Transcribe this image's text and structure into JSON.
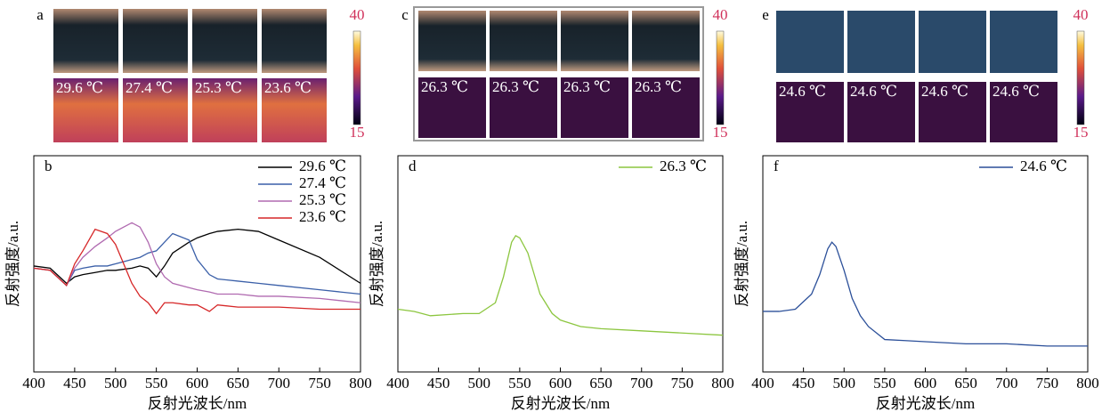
{
  "image_panels": [
    {
      "letter": "a",
      "thermal_labels": [
        "29.6 ℃",
        "27.4 ℃",
        "25.3 ℃",
        "23.6 ℃"
      ],
      "colorbar_ticks": [
        40,
        15
      ]
    },
    {
      "letter": "c",
      "thermal_labels": [
        "26.3 ℃",
        "26.3 ℃",
        "26.3 ℃",
        "26.3 ℃"
      ],
      "colorbar_ticks": [
        40,
        15
      ]
    },
    {
      "letter": "e",
      "thermal_labels": [
        "24.6 ℃",
        "24.6 ℃",
        "24.6 ℃",
        "24.6 ℃"
      ],
      "colorbar_ticks": [
        40,
        15
      ]
    }
  ],
  "chart_data": [
    {
      "type": "line",
      "panel": "b",
      "xlabel": "反射光波长/nm",
      "ylabel": "反射强度/a.u.",
      "x": [
        400,
        420,
        440,
        450,
        460,
        475,
        490,
        500,
        520,
        530,
        540,
        550,
        560,
        570,
        590,
        600,
        615,
        625,
        650,
        675,
        700,
        750,
        800
      ],
      "series": [
        {
          "name": "29.6 ℃",
          "color": "#000000",
          "values": [
            0.49,
            0.48,
            0.41,
            0.44,
            0.45,
            0.46,
            0.47,
            0.47,
            0.48,
            0.49,
            0.48,
            0.44,
            0.49,
            0.55,
            0.6,
            0.62,
            0.64,
            0.65,
            0.66,
            0.65,
            0.61,
            0.53,
            0.41
          ]
        },
        {
          "name": "27.4 ℃",
          "color": "#3a5fa8",
          "values": [
            0.48,
            0.47,
            0.4,
            0.47,
            0.48,
            0.49,
            0.49,
            0.5,
            0.52,
            0.53,
            0.55,
            0.56,
            0.6,
            0.64,
            0.61,
            0.52,
            0.45,
            0.43,
            0.42,
            0.41,
            0.4,
            0.38,
            0.36
          ]
        },
        {
          "name": "25.3 ℃",
          "color": "#b06ab0",
          "values": [
            0.48,
            0.47,
            0.4,
            0.48,
            0.53,
            0.58,
            0.62,
            0.65,
            0.69,
            0.67,
            0.6,
            0.5,
            0.44,
            0.41,
            0.39,
            0.38,
            0.37,
            0.36,
            0.36,
            0.35,
            0.35,
            0.34,
            0.32
          ]
        },
        {
          "name": "23.6 ℃",
          "color": "#d62728",
          "values": [
            0.48,
            0.47,
            0.4,
            0.5,
            0.56,
            0.66,
            0.64,
            0.59,
            0.41,
            0.35,
            0.32,
            0.27,
            0.32,
            0.32,
            0.31,
            0.31,
            0.28,
            0.31,
            0.3,
            0.3,
            0.3,
            0.29,
            0.29
          ]
        }
      ],
      "xlim": [
        400,
        800
      ],
      "xticks": [
        400,
        450,
        500,
        550,
        600,
        650,
        700,
        750,
        800
      ],
      "ylim": [
        0,
        1
      ]
    },
    {
      "type": "line",
      "panel": "d",
      "xlabel": "反射光波长/nm",
      "ylabel": "反射强度/a.u.",
      "x": [
        400,
        420,
        440,
        480,
        500,
        520,
        530,
        540,
        545,
        550,
        560,
        575,
        590,
        600,
        625,
        650,
        700,
        750,
        800
      ],
      "series": [
        {
          "name": "26.3 ℃",
          "color": "#8cc63f",
          "values": [
            0.29,
            0.28,
            0.26,
            0.27,
            0.27,
            0.32,
            0.44,
            0.6,
            0.63,
            0.62,
            0.55,
            0.36,
            0.27,
            0.24,
            0.21,
            0.2,
            0.19,
            0.18,
            0.17
          ]
        }
      ],
      "xlim": [
        400,
        800
      ],
      "xticks": [
        400,
        450,
        500,
        550,
        600,
        650,
        700,
        750,
        800
      ],
      "ylim": [
        0,
        1
      ]
    },
    {
      "type": "line",
      "panel": "f",
      "xlabel": "反射光波长/nm",
      "ylabel": "反射强度/a.u.",
      "x": [
        400,
        420,
        440,
        460,
        470,
        480,
        485,
        490,
        500,
        510,
        520,
        530,
        550,
        575,
        600,
        650,
        700,
        750,
        800
      ],
      "series": [
        {
          "name": "24.6 ℃",
          "color": "#2b4f99",
          "values": [
            0.28,
            0.28,
            0.29,
            0.36,
            0.45,
            0.57,
            0.6,
            0.58,
            0.47,
            0.34,
            0.26,
            0.21,
            0.15,
            0.145,
            0.14,
            0.13,
            0.13,
            0.12,
            0.12
          ]
        }
      ],
      "xlim": [
        400,
        800
      ],
      "xticks": [
        400,
        450,
        500,
        550,
        600,
        650,
        700,
        750,
        800
      ],
      "ylim": [
        0,
        1
      ]
    }
  ]
}
